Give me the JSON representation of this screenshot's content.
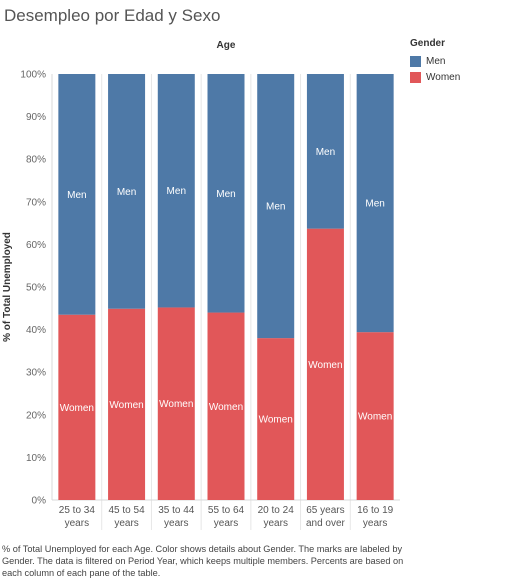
{
  "title": "Desempleo por Edad y Sexo",
  "caption": "% of Total Unemployed for each Age.  Color shows details about Gender.  The marks are labeled by Gender. The data is filtered on Period Year, which keeps multiple members. Percents are based on each column of each pane of the table.",
  "legend": {
    "title": "Gender",
    "items": [
      {
        "label": "Men",
        "color": "#4e79a7"
      },
      {
        "label": "Women",
        "color": "#e15759"
      }
    ]
  },
  "chart_data": {
    "type": "bar",
    "stacked": true,
    "column_header": "Age",
    "ylabel": "% of Total Unemployed",
    "ylim": [
      0,
      100
    ],
    "yticks": [
      "0%",
      "10%",
      "20%",
      "30%",
      "40%",
      "50%",
      "60%",
      "70%",
      "80%",
      "90%",
      "100%"
    ],
    "categories": [
      [
        "25 to 34",
        "years"
      ],
      [
        "45 to 54",
        "years"
      ],
      [
        "35 to 44",
        "years"
      ],
      [
        "55 to 64",
        "years"
      ],
      [
        "20 to 24",
        "years"
      ],
      [
        "65 years",
        "and over"
      ],
      [
        "16 to 19",
        "years"
      ]
    ],
    "series": [
      {
        "name": "Women",
        "color": "#e15759",
        "values": [
          43.5,
          44.9,
          45.2,
          44.0,
          38.0,
          63.7,
          39.4
        ]
      },
      {
        "name": "Men",
        "color": "#4e79a7",
        "values": [
          56.5,
          55.1,
          54.8,
          56.0,
          62.0,
          36.3,
          60.6
        ]
      }
    ]
  }
}
